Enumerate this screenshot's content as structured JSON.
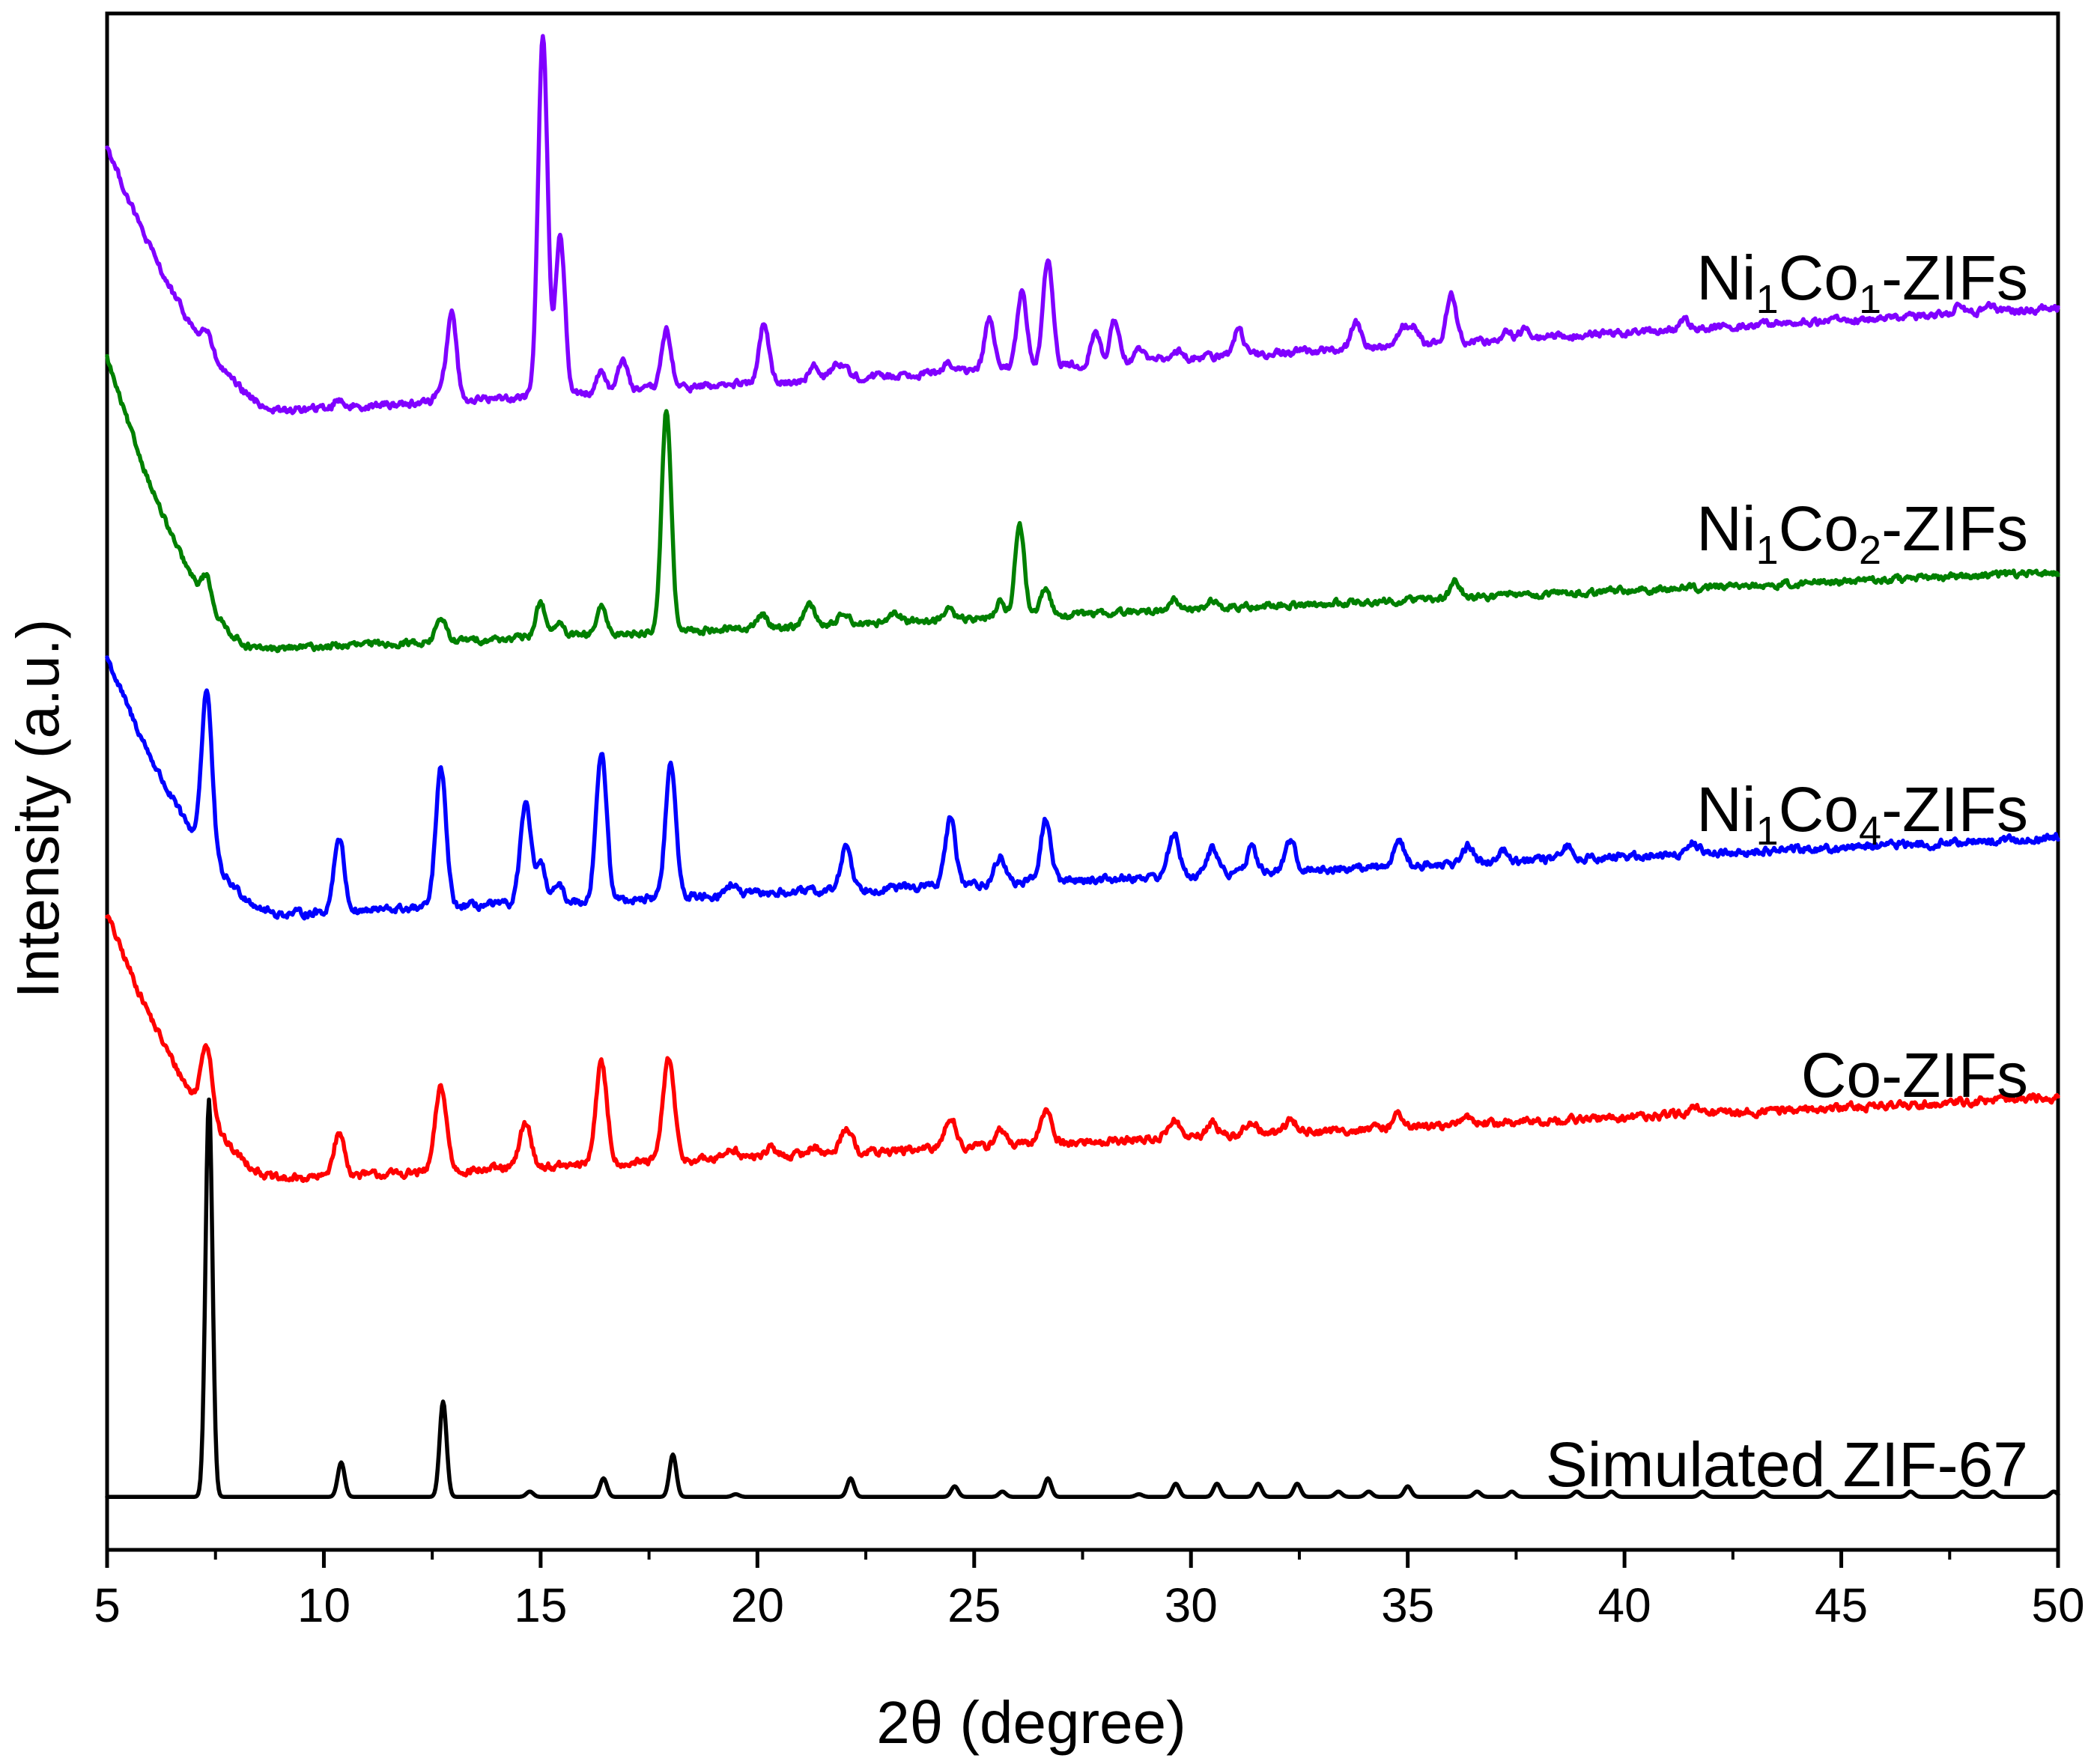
{
  "chart_data": {
    "type": "line",
    "title": "",
    "xlabel": "2θ (degree)",
    "ylabel": "Intensity (a.u.)",
    "xlim": [
      5,
      50
    ],
    "ylim": [
      0,
      5.8
    ],
    "x_ticks": [
      "5",
      "10",
      "15",
      "20",
      "25",
      "30",
      "35",
      "40",
      "45",
      "50"
    ],
    "y_ticks_shown": false,
    "series": [
      {
        "name": "Simulated ZIF-67",
        "label_parts": [
          {
            "t": "Simulated ZIF-67",
            "sub": false
          }
        ],
        "color": "#000000",
        "offset": 0.2,
        "baseline": {
          "type": "flat",
          "level": 0.0
        },
        "noise": 0.0,
        "peak_width": 0.08,
        "peaks": [
          [
            7.35,
            1.5
          ],
          [
            10.4,
            0.13
          ],
          [
            12.75,
            0.36
          ],
          [
            14.75,
            0.02
          ],
          [
            16.45,
            0.07
          ],
          [
            18.05,
            0.16
          ],
          [
            19.5,
            0.01
          ],
          [
            22.15,
            0.07
          ],
          [
            24.55,
            0.04
          ],
          [
            25.65,
            0.02
          ],
          [
            26.7,
            0.07
          ],
          [
            28.8,
            0.01
          ],
          [
            29.65,
            0.05
          ],
          [
            30.6,
            0.05
          ],
          [
            31.55,
            0.05
          ],
          [
            32.45,
            0.05
          ],
          [
            33.4,
            0.02
          ],
          [
            34.1,
            0.02
          ],
          [
            35.0,
            0.04
          ],
          [
            36.6,
            0.02
          ],
          [
            37.4,
            0.02
          ],
          [
            38.9,
            0.02
          ],
          [
            39.7,
            0.02
          ],
          [
            41.8,
            0.02
          ],
          [
            43.2,
            0.02
          ],
          [
            44.7,
            0.02
          ],
          [
            46.6,
            0.02
          ],
          [
            47.8,
            0.02
          ],
          [
            48.5,
            0.02
          ],
          [
            49.9,
            0.02
          ]
        ]
      },
      {
        "name": "Co-ZIFs",
        "label_parts": [
          {
            "t": "Co-ZIFs",
            "sub": false
          }
        ],
        "color": "#ff0000",
        "offset": 1.4,
        "baseline": {
          "type": "decay",
          "start": 1.0,
          "min_x": 9.0,
          "slope": 0.0075
        },
        "noise": 0.012,
        "peak_width": 0.13,
        "peaks": [
          [
            7.3,
            0.28
          ],
          [
            10.35,
            0.16
          ],
          [
            12.7,
            0.32
          ],
          [
            14.65,
            0.17
          ],
          [
            16.4,
            0.38
          ],
          [
            17.95,
            0.39
          ],
          [
            19.4,
            0.04
          ],
          [
            20.3,
            0.03
          ],
          [
            21.3,
            0.03
          ],
          [
            22.05,
            0.1
          ],
          [
            24.45,
            0.12
          ],
          [
            25.6,
            0.06
          ],
          [
            26.65,
            0.13
          ],
          [
            29.6,
            0.07
          ],
          [
            30.5,
            0.05
          ],
          [
            31.4,
            0.05
          ],
          [
            32.3,
            0.05
          ],
          [
            34.8,
            0.05
          ],
          [
            36.4,
            0.03
          ],
          [
            41.6,
            0.02
          ]
        ]
      },
      {
        "name": "Ni1Co4-ZIFs",
        "label_parts": [
          {
            "t": "Ni",
            "sub": false
          },
          {
            "t": "1",
            "sub": true
          },
          {
            "t": "Co",
            "sub": false
          },
          {
            "t": "4",
            "sub": true
          },
          {
            "t": "-ZIFs",
            "sub": false
          }
        ],
        "color": "#0000ff",
        "offset": 2.4,
        "baseline": {
          "type": "decay",
          "start": 0.97,
          "min_x": 9.0,
          "slope": 0.007
        },
        "noise": 0.012,
        "peak_width": 0.12,
        "peaks": [
          [
            7.3,
            0.62
          ],
          [
            10.35,
            0.28
          ],
          [
            12.7,
            0.52
          ],
          [
            14.65,
            0.37
          ],
          [
            15.0,
            0.14
          ],
          [
            15.4,
            0.06
          ],
          [
            16.4,
            0.56
          ],
          [
            18.0,
            0.5
          ],
          [
            19.4,
            0.04
          ],
          [
            22.05,
            0.17
          ],
          [
            24.45,
            0.25
          ],
          [
            25.6,
            0.1
          ],
          [
            26.65,
            0.23
          ],
          [
            29.6,
            0.16
          ],
          [
            30.5,
            0.1
          ],
          [
            31.4,
            0.09
          ],
          [
            32.3,
            0.11
          ],
          [
            34.8,
            0.1
          ],
          [
            36.4,
            0.07
          ],
          [
            37.2,
            0.05
          ],
          [
            38.7,
            0.05
          ],
          [
            41.6,
            0.04
          ]
        ]
      },
      {
        "name": "Ni1Co2-ZIFs",
        "label_parts": [
          {
            "t": "Ni",
            "sub": false
          },
          {
            "t": "1",
            "sub": true
          },
          {
            "t": "Co",
            "sub": false
          },
          {
            "t": "2",
            "sub": true
          },
          {
            "t": "-ZIFs",
            "sub": false
          }
        ],
        "color": "#008000",
        "offset": 3.4,
        "baseline": {
          "type": "decay",
          "start": 1.1,
          "min_x": 8.5,
          "slope": 0.007
        },
        "noise": 0.01,
        "peak_width": 0.11,
        "peaks": [
          [
            7.3,
            0.1
          ],
          [
            12.7,
            0.09
          ],
          [
            15.0,
            0.13
          ],
          [
            15.4,
            0.05
          ],
          [
            16.4,
            0.1
          ],
          [
            17.9,
            0.84
          ],
          [
            20.1,
            0.05
          ],
          [
            21.2,
            0.09
          ],
          [
            22.0,
            0.05
          ],
          [
            23.2,
            0.03
          ],
          [
            24.4,
            0.04
          ],
          [
            25.6,
            0.06
          ],
          [
            26.05,
            0.34
          ],
          [
            26.65,
            0.1
          ],
          [
            29.6,
            0.04
          ],
          [
            30.5,
            0.03
          ],
          [
            36.1,
            0.07
          ]
        ]
      },
      {
        "name": "Ni1Co1-ZIFs",
        "label_parts": [
          {
            "t": "Ni",
            "sub": false
          },
          {
            "t": "1",
            "sub": true
          },
          {
            "t": "Co",
            "sub": false
          },
          {
            "t": "1",
            "sub": true
          },
          {
            "t": "-ZIFs",
            "sub": false
          }
        ],
        "color": "#8000ff",
        "offset": 4.3,
        "baseline": {
          "type": "decay",
          "start": 1.0,
          "min_x": 9.0,
          "slope": 0.0095
        },
        "noise": 0.011,
        "peak_width": 0.11,
        "peaks": [
          [
            7.3,
            0.07
          ],
          [
            10.35,
            0.03
          ],
          [
            12.7,
            0.05
          ],
          [
            12.95,
            0.33
          ],
          [
            15.05,
            1.35
          ],
          [
            15.45,
            0.6
          ],
          [
            16.4,
            0.08
          ],
          [
            16.9,
            0.12
          ],
          [
            17.9,
            0.22
          ],
          [
            20.15,
            0.22
          ],
          [
            21.3,
            0.05
          ],
          [
            21.8,
            0.05
          ],
          [
            22.0,
            0.04
          ],
          [
            24.4,
            0.04
          ],
          [
            25.35,
            0.19
          ],
          [
            26.1,
            0.29
          ],
          [
            26.7,
            0.4
          ],
          [
            27.8,
            0.11
          ],
          [
            28.25,
            0.16
          ],
          [
            28.8,
            0.04
          ],
          [
            29.7,
            0.03
          ],
          [
            31.1,
            0.1
          ],
          [
            33.8,
            0.1
          ],
          [
            34.9,
            0.07
          ],
          [
            35.15,
            0.07
          ],
          [
            36.0,
            0.18
          ],
          [
            37.3,
            0.03
          ],
          [
            37.7,
            0.04
          ],
          [
            41.4,
            0.03
          ],
          [
            47.7,
            0.03
          ],
          [
            48.4,
            0.02
          ]
        ]
      }
    ]
  }
}
